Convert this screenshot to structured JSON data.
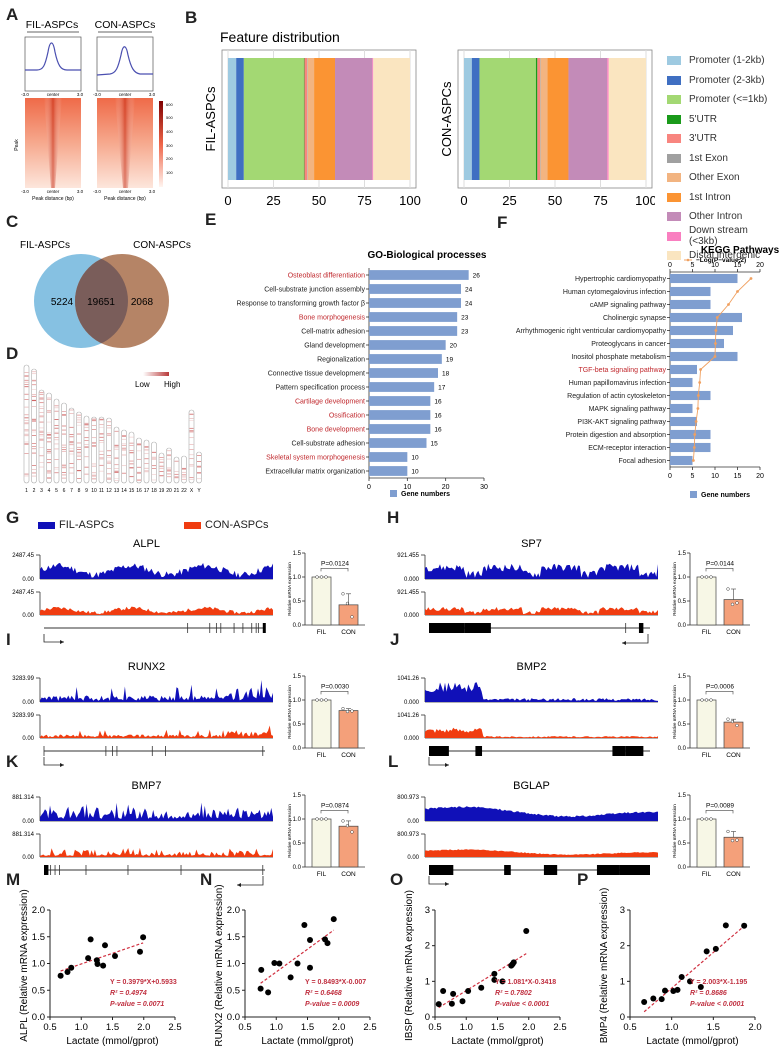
{
  "panels": {
    "A": "A",
    "B": "B",
    "C": "C",
    "D": "D",
    "E": "E",
    "F": "F",
    "G": "G",
    "H": "H",
    "I": "I",
    "J": "J",
    "K": "K",
    "L": "L",
    "M": "M",
    "N": "N",
    "O": "O",
    "P": "P"
  },
  "panel_A": {
    "groups": [
      "FIL-ASPCs",
      "CON-ASPCs"
    ],
    "profile_ticks": [
      "-3.0",
      "center",
      "3.0"
    ],
    "heatmap_ylabel": "Peak",
    "xlabel": "Peak distance (bp)",
    "colorbar_ticks": [
      "600",
      "500",
      "400",
      "300",
      "200",
      "100"
    ],
    "line_color": "#4a4fb0"
  },
  "chart_data": [
    {
      "id": "B",
      "type": "bar",
      "subtype": "stacked-horizontal-percent",
      "title": "Feature distribution",
      "xlim": [
        0,
        100
      ],
      "xticks": [
        "0",
        "25",
        "50",
        "75",
        "100"
      ],
      "categories": [
        "Promoter (1-2kb)",
        "Promoter (2-3kb)",
        "Promoter (<=1kb)",
        "5'UTR",
        "3'UTR",
        "1st Exon",
        "Other Exon",
        "1st Intron",
        "Other Intron",
        "Down stream (<3kb)",
        "Distal intergenic"
      ],
      "colors": [
        "#9ecae1",
        "#3f6fc2",
        "#a3d873",
        "#1a9a1a",
        "#f8857f",
        "#a0a0a0",
        "#f2b481",
        "#fb9433",
        "#c38bb8",
        "#f97fc0",
        "#fae5c0"
      ],
      "series": [
        {
          "name": "FIL-ASPCs",
          "values": [
            4.5,
            4.2,
            33.0,
            0.3,
            1.5,
            0.3,
            3.5,
            11.5,
            20.5,
            0.5,
            20.2
          ]
        },
        {
          "name": "CON-ASPCs",
          "values": [
            4.3,
            4.2,
            31.0,
            0.8,
            1.5,
            0.3,
            3.8,
            11.5,
            21.3,
            0.8,
            20.5
          ]
        }
      ]
    },
    {
      "id": "C",
      "type": "venn",
      "sets": [
        "FIL-ASPCs",
        "CON-ASPCs"
      ],
      "values": {
        "FIL_only": 5224,
        "both": 19651,
        "CON_only": 2068
      },
      "colors": [
        "#86c1e2",
        "#b58466",
        "#7a5d5a"
      ]
    },
    {
      "id": "D",
      "type": "heatmap",
      "subtype": "chromosome-ideogram",
      "legend": [
        "Low",
        "High"
      ],
      "chromosomes": [
        "1",
        "2",
        "3",
        "4",
        "5",
        "6",
        "7",
        "8",
        "9",
        "10",
        "11",
        "12",
        "13",
        "14",
        "15",
        "16",
        "17",
        "18",
        "19",
        "20",
        "21",
        "22",
        "X",
        "Y"
      ]
    },
    {
      "id": "E",
      "type": "bar",
      "title": "GO-Biological processes",
      "xlim": [
        0,
        30
      ],
      "xticks": [
        "0",
        "10",
        "20",
        "30"
      ],
      "legend": "Gene numbers",
      "bar_color": "#7f9ed0",
      "highlight_color": "#c0282d",
      "categories": [
        "Osteoblast differentiation",
        "Cell-substrate junction assembly",
        "Response to transforming growth factor β",
        "Bone morphogenesis",
        "Cell-matrix adhesion",
        "Gland development",
        "Regionalization",
        "Connective tissue development",
        "Pattern specification process",
        "Cartilage development",
        "Ossification",
        "Bone development",
        "Cell-substrate adhesion",
        "Skeletal system morphogenesis",
        "Extracellular matrix organization"
      ],
      "values": [
        26,
        24,
        24,
        23,
        23,
        20,
        19,
        18,
        17,
        16,
        16,
        16,
        15,
        10,
        10
      ],
      "highlighted": [
        true,
        false,
        false,
        true,
        false,
        false,
        false,
        false,
        false,
        true,
        true,
        true,
        false,
        true,
        false
      ]
    },
    {
      "id": "F",
      "type": "bar",
      "title": "KEGG Pathways",
      "xlim": [
        0,
        20
      ],
      "xticks": [
        "0",
        "5",
        "10",
        "15",
        "20"
      ],
      "legend": "Gene numbers",
      "line_legend": "−Log(P−value,2)",
      "bar_color": "#7f9ed0",
      "line_color": "#f0a060",
      "highlight_color": "#c0282d",
      "categories": [
        "Hypertrophic cardiomyopathy",
        "Human cytomegalovirus infection",
        "cAMP signaling pathway",
        "Cholinergic synapse",
        "Arrhythmogenic right ventricular cardiomyopathy",
        "Proteoglycans in cancer",
        "Inositol phosphate metabolism",
        "TGF-beta signaling pathway",
        "Human papillomavirus infection",
        "Regulation of actin cytoskeleton",
        "MAPK signaling pathway",
        "PI3K-AKT signaling pathway",
        "Protein digestion and absorption",
        "ECM-receptor interaction",
        "Focal adhesion"
      ],
      "series": [
        {
          "name": "Gene numbers",
          "values": [
            15,
            9,
            9,
            16,
            14,
            12,
            15,
            6,
            5,
            9,
            5,
            6,
            9,
            9,
            5
          ]
        },
        {
          "name": "−Log(P−value,2)",
          "values": [
            18,
            15,
            13,
            10.5,
            10.2,
            10.1,
            10.0,
            6.8,
            6.6,
            6.3,
            6.2,
            5.8,
            5.5,
            5.4,
            5.2
          ]
        }
      ],
      "highlighted": [
        false,
        false,
        false,
        false,
        false,
        false,
        false,
        true,
        false,
        false,
        false,
        false,
        false,
        false,
        false
      ]
    },
    {
      "id": "G-L",
      "type": "area",
      "subtype": "genome-tracks-with-bars",
      "legend": [
        {
          "name": "FIL-ASPCs",
          "color": "#1010b8"
        },
        {
          "name": "CON-ASPCs",
          "color": "#f03c10"
        }
      ],
      "bar_ylabel": "Relative mRNA expression",
      "bar_yticks": [
        "0.0",
        "0.5",
        "1.0",
        "1.5"
      ],
      "bar_ylim": [
        0,
        1.5
      ],
      "bar_categories": [
        "FIL",
        "CON"
      ],
      "bar_colors": [
        "#f7f7e6",
        "#f4a07a"
      ],
      "genes": [
        {
          "panel": "G",
          "gene": "ALPL",
          "track_max": "2487.45",
          "track_min": "0.00",
          "p": "P=0.0124",
          "FIL": 1.0,
          "CON": 0.42,
          "CON_points": [
            0.65,
            0.45,
            0.17
          ]
        },
        {
          "panel": "H",
          "gene": "SP7",
          "track_max": "921.455",
          "track_min": "0.000",
          "p": "P=0.0144",
          "FIL": 1.0,
          "CON": 0.53,
          "CON_points": [
            0.75,
            0.43,
            0.46
          ]
        },
        {
          "panel": "I",
          "gene": "RUNX2",
          "track_max": "3283.99",
          "track_min": "0.00",
          "p": "P=0.0030",
          "FIL": 1.0,
          "CON": 0.78,
          "CON_points": [
            0.82,
            0.76,
            0.77
          ]
        },
        {
          "panel": "J",
          "gene": "BMP2",
          "track_max": "1041.26",
          "track_min": "0.000",
          "p": "P=0.0006",
          "FIL": 1.0,
          "CON": 0.54,
          "CON_points": [
            0.6,
            0.55,
            0.47
          ]
        },
        {
          "panel": "K",
          "gene": "BMP7",
          "track_max": "881.314",
          "track_min": "0.00",
          "p": "P=0.0874",
          "FIL": 1.0,
          "CON": 0.85,
          "CON_points": [
            0.96,
            0.86,
            0.73
          ]
        },
        {
          "panel": "L",
          "gene": "BGLAP",
          "track_max": "800.973",
          "track_min": "0.00",
          "p": "P=0.0089",
          "FIL": 1.0,
          "CON": 0.62,
          "CON_points": [
            0.74,
            0.55,
            0.56
          ]
        }
      ]
    },
    {
      "id": "M",
      "type": "scatter",
      "xlabel": "Lactate (mmol/gprot)",
      "ylabel": "ALPL (Relative mRNA expression)",
      "xlim": [
        0.5,
        2.5
      ],
      "ylim": [
        0,
        2.0
      ],
      "xticks": [
        "0.5",
        "1.0",
        "1.5",
        "2.0",
        "2.5"
      ],
      "yticks": [
        "0.0",
        "0.5",
        "1.0",
        "1.5",
        "2.0"
      ],
      "x": [
        0.67,
        0.78,
        0.84,
        1.11,
        1.15,
        1.25,
        1.26,
        1.35,
        1.38,
        1.54,
        1.94,
        1.99
      ],
      "y": [
        0.77,
        0.84,
        0.92,
        1.1,
        1.45,
        1.06,
        0.99,
        0.96,
        1.34,
        1.14,
        1.22,
        1.49
      ],
      "fit": {
        "slope": 0.3979,
        "intercept": 0.5933,
        "x_range": [
          0.67,
          1.99
        ]
      },
      "annotation": [
        "Y = 0.3979*X+0.5933",
        "R² = 0.4974",
        "P-value = 0.0071"
      ]
    },
    {
      "id": "N",
      "type": "scatter",
      "xlabel": "Lactate (mmol/gprot)",
      "ylabel": "RUNX2 (Relative mRNA expression)",
      "xlim": [
        0.5,
        2.5
      ],
      "ylim": [
        0,
        2.0
      ],
      "xticks": [
        "0.5",
        "1.0",
        "1.5",
        "2.0",
        "2.5"
      ],
      "yticks": [
        "0.0",
        "0.5",
        "1.0",
        "1.5",
        "2.0"
      ],
      "x": [
        0.75,
        0.76,
        0.87,
        0.97,
        1.05,
        1.23,
        1.34,
        1.45,
        1.54,
        1.54,
        1.78,
        1.82,
        1.92
      ],
      "y": [
        0.53,
        0.88,
        0.46,
        1.01,
        1.0,
        0.74,
        1.0,
        1.72,
        1.44,
        0.92,
        1.45,
        1.38,
        1.83
      ],
      "fit": {
        "slope": 0.8493,
        "intercept": -0.007,
        "x_range": [
          0.75,
          1.92
        ]
      },
      "annotation": [
        "Y = 0.8493*X-0.007",
        "R² = 0.6468",
        "P-value = 0.0009"
      ]
    },
    {
      "id": "O",
      "type": "scatter",
      "xlabel": "Lactate (mmol/gprot)",
      "ylabel": "IBSP (Relative mRNA expression)",
      "xlim": [
        0.5,
        2.5
      ],
      "ylim": [
        0,
        3
      ],
      "xticks": [
        "0.5",
        "1.0",
        "1.5",
        "2.0",
        "2.5"
      ],
      "yticks": [
        "0",
        "1",
        "2",
        "3"
      ],
      "x": [
        0.56,
        0.63,
        0.77,
        0.79,
        0.94,
        1.03,
        1.24,
        1.45,
        1.45,
        1.58,
        1.72,
        1.74,
        1.76,
        1.96
      ],
      "y": [
        0.36,
        0.73,
        0.37,
        0.65,
        0.44,
        0.73,
        0.82,
        1.04,
        1.21,
        1.0,
        1.44,
        1.48,
        1.53,
        2.41
      ],
      "fit": {
        "slope": 1.081,
        "intercept": -0.3418,
        "x_range": [
          0.56,
          1.96
        ]
      },
      "annotation": [
        "Y = 1.081*X-0.3418",
        "R² = 0.7802",
        "P-value < 0.0001"
      ]
    },
    {
      "id": "P",
      "type": "scatter",
      "xlabel": "Lactate (mmol/gprot)",
      "ylabel": "BMP4 (Relative mRNA expression)",
      "xlim": [
        0.5,
        2.0
      ],
      "ylim": [
        0,
        3
      ],
      "xticks": [
        "0.5",
        "1.0",
        "1.5",
        "2.0"
      ],
      "yticks": [
        "0",
        "1",
        "2",
        "3"
      ],
      "x": [
        0.67,
        0.78,
        0.88,
        0.92,
        1.02,
        1.07,
        1.12,
        1.22,
        1.35,
        1.42,
        1.53,
        1.65,
        1.87
      ],
      "y": [
        0.42,
        0.52,
        0.5,
        0.74,
        0.73,
        0.76,
        1.12,
        1.0,
        0.84,
        1.84,
        1.91,
        2.57,
        2.56
      ],
      "fit": {
        "slope": 2.003,
        "intercept": -1.195,
        "x_range": [
          0.67,
          1.87
        ]
      },
      "annotation": [
        "Y = 2.003*X-1.195",
        "R² = 0.8686",
        "P-value < 0.0001"
      ]
    }
  ]
}
